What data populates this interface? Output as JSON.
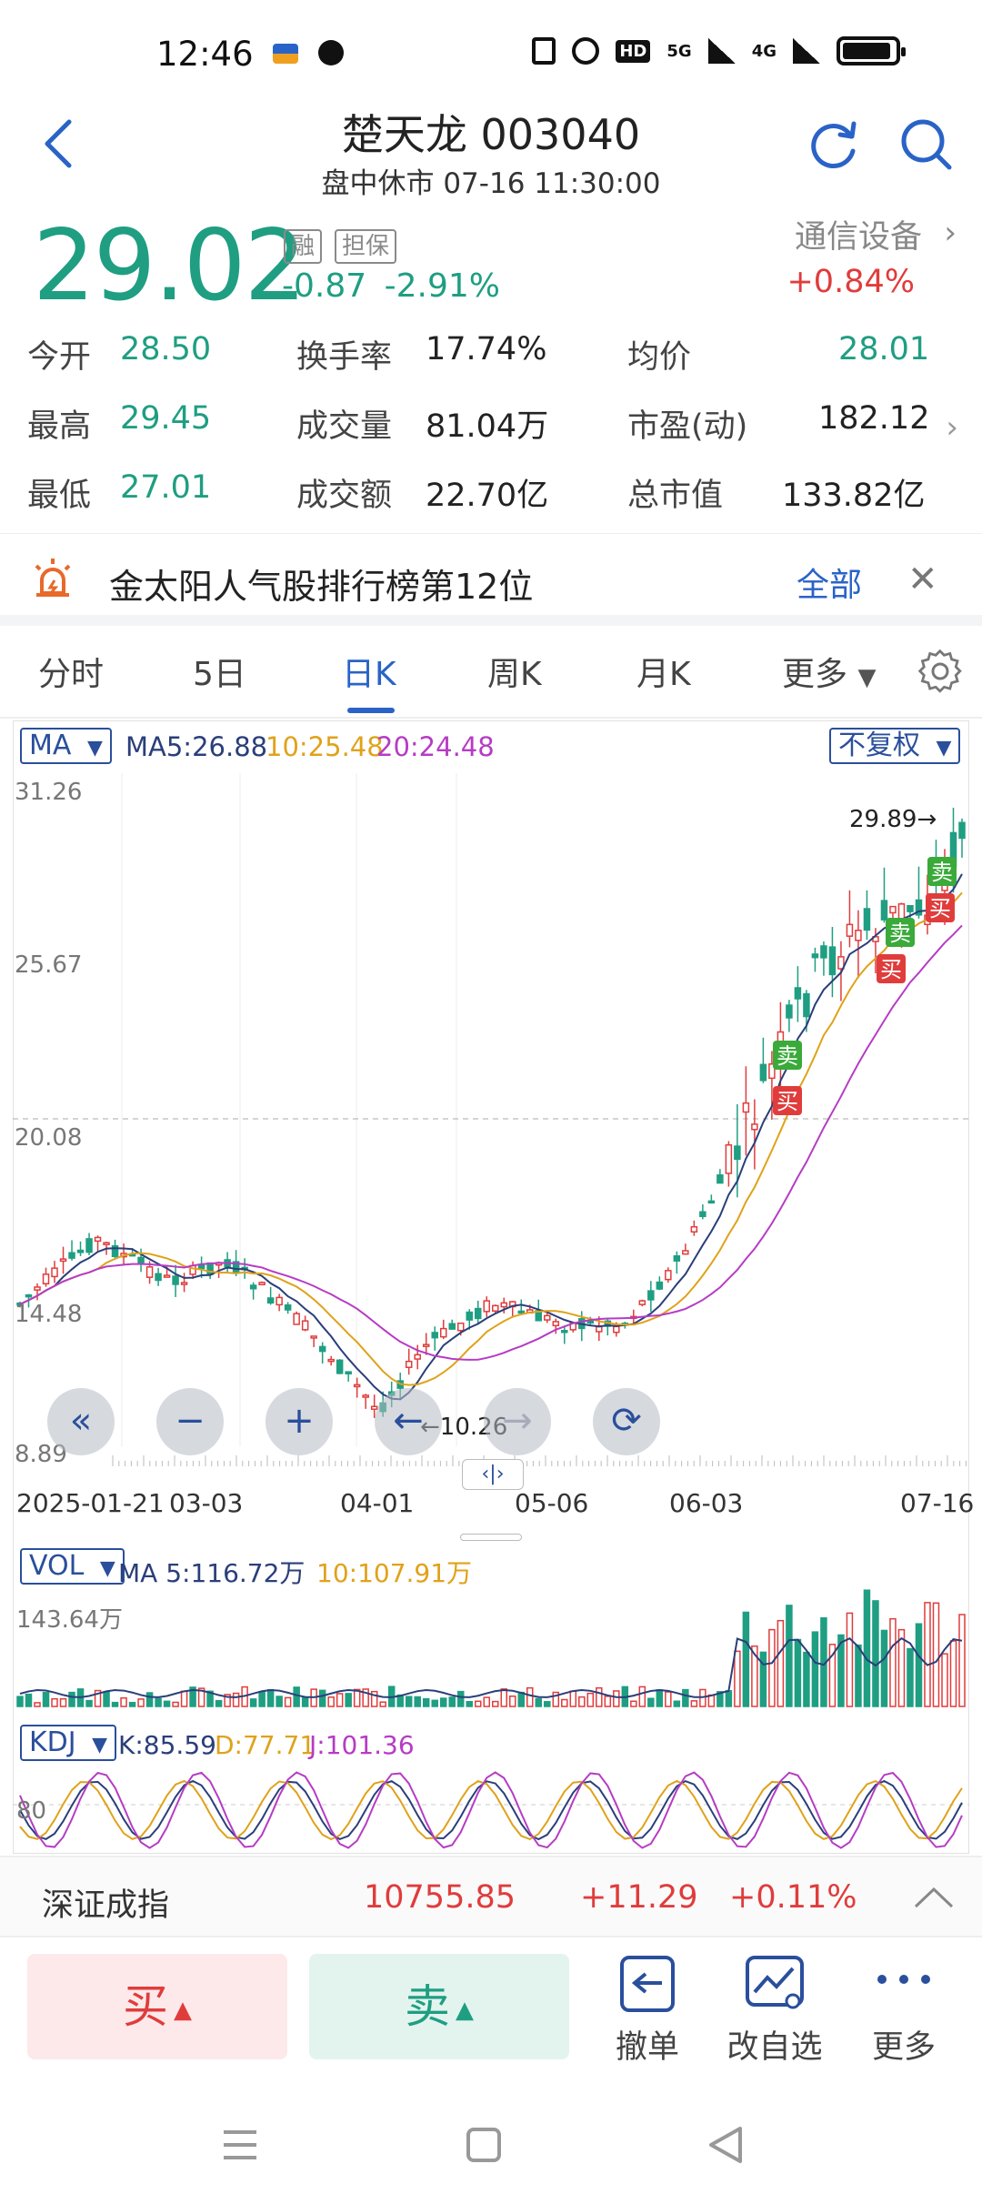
{
  "status_bar": {
    "time": "12:46",
    "signal_1": "5G",
    "signal_2": "4G"
  },
  "header": {
    "title": "楚天龙 003040",
    "subtitle": "盘中休市 07-16 11:30:00"
  },
  "quote": {
    "price": "29.02",
    "tag_margin": "融",
    "tag_guarantee": "担保",
    "change": "-0.87",
    "change_pct": "-2.91%",
    "sector": "通信设备",
    "sector_change": "+0.84%"
  },
  "stats": {
    "open_label": "今开",
    "open": "28.50",
    "turnover_label": "换手率",
    "turnover": "17.74%",
    "avg_label": "均价",
    "avg": "28.01",
    "high_label": "最高",
    "high": "29.45",
    "volume_label": "成交量",
    "volume": "81.04万",
    "pe_label": "市盈(动)",
    "pe": "182.12",
    "low_label": "最低",
    "low": "27.01",
    "amount_label": "成交额",
    "amount": "22.70亿",
    "mcap_label": "总市值",
    "mcap": "133.82亿"
  },
  "banner": {
    "text": "金太阳人气股排行榜第12位",
    "all": "全部"
  },
  "tabs": [
    "分时",
    "5日",
    "日K",
    "周K",
    "月K",
    "更多"
  ],
  "tab_active": "日K",
  "chart": {
    "ma_selector": "MA",
    "ma5": "MA5:26.88",
    "ma10": "10:25.48",
    "ma20": "20:24.48",
    "adjust": "不复权",
    "price_labels": [
      "31.26",
      "25.67",
      "20.08",
      "14.48",
      "8.89"
    ],
    "max_marker": "29.89",
    "min_marker": "10.26",
    "date_labels": [
      "2025-01-21",
      "03-03",
      "04-01",
      "05-06",
      "06-03",
      "07-16"
    ],
    "signal_buy": "买",
    "signal_sell": "卖",
    "vol_selector": "VOL",
    "vol_ma5": "MA 5:116.72万",
    "vol_ma10": "10:107.91万",
    "vol_max": "143.64万",
    "kdj_selector": "KDJ",
    "kdj_k": "K:85.59",
    "kdj_d": "D:77.71",
    "kdj_j": "J:101.36",
    "kdj_level": "80"
  },
  "chart_data": {
    "type": "line",
    "title": "",
    "series": [
      {
        "name": "MA5",
        "last": 26.88
      },
      {
        "name": "10",
        "last": 25.48
      },
      {
        "name": "20",
        "last": 24.48
      }
    ],
    "ylim": [
      8.89,
      31.26
    ],
    "x": [
      "2025-01-21",
      "03-03",
      "04-01",
      "05-06",
      "06-03",
      "07-16"
    ]
  },
  "index_bar": {
    "name": "深证成指",
    "value": "10755.85",
    "change": "+11.29",
    "change_pct": "+0.11%"
  },
  "actions": {
    "buy": "买",
    "sell": "卖",
    "cancel": "撤单",
    "watchlist": "改自选",
    "more": "更多"
  },
  "colors": {
    "up": "#e03c3c",
    "down": "#1f9e82",
    "accent": "#2a63c7"
  }
}
